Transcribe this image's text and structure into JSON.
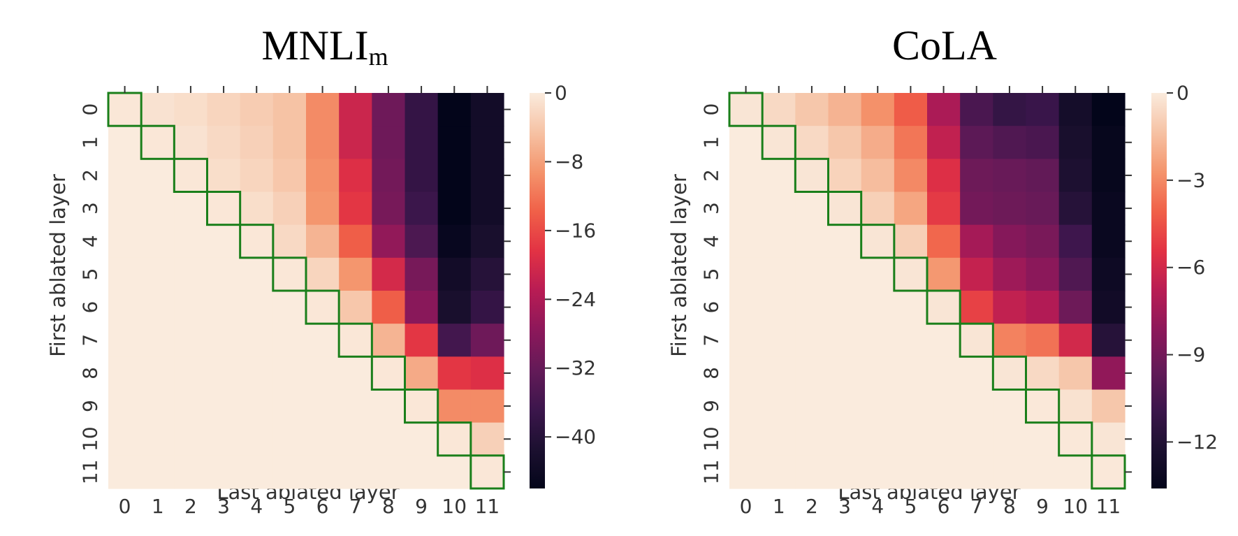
{
  "chart_data": [
    {
      "type": "heatmap",
      "title": "MNLI",
      "title_subscript": "m",
      "xlabel": "Last ablated layer",
      "ylabel": "First ablated layer",
      "x_ticks": [
        "0",
        "1",
        "2",
        "3",
        "4",
        "5",
        "6",
        "7",
        "8",
        "9",
        "10",
        "11"
      ],
      "y_ticks": [
        "0",
        "1",
        "2",
        "3",
        "4",
        "5",
        "6",
        "7",
        "8",
        "9",
        "10",
        "11"
      ],
      "colorbar": {
        "min": -46,
        "max": 0,
        "ticks": [
          0,
          -8,
          -16,
          -24,
          -32,
          -40
        ],
        "tick_labels": [
          "0",
          "−8",
          "−16",
          "−24",
          "−32",
          "−40"
        ],
        "colormap": "rocket"
      },
      "diagonal_highlight_color": "#1a7f1a",
      "values": [
        [
          -0.5,
          -1,
          -1.5,
          -2.5,
          -3.5,
          -4.5,
          -10,
          -21,
          -31,
          -38,
          -46,
          -43
        ],
        [
          0,
          -0.5,
          -1,
          -2,
          -3,
          -4.5,
          -10,
          -21,
          -31,
          -38,
          -46,
          -43
        ],
        [
          0,
          0,
          -0.5,
          -1.5,
          -2.5,
          -4,
          -9.5,
          -19,
          -30.5,
          -38,
          -46,
          -43
        ],
        [
          0,
          0,
          0,
          -0.5,
          -1.5,
          -3,
          -9,
          -18,
          -30,
          -37,
          -46,
          -43
        ],
        [
          0,
          0,
          0,
          0,
          -0.5,
          -2,
          -6,
          -14,
          -27,
          -35,
          -45,
          -42
        ],
        [
          0,
          0,
          0,
          0,
          0,
          -0.5,
          -2.5,
          -9,
          -20,
          -30,
          -43,
          -40
        ],
        [
          0,
          0,
          0,
          0,
          0,
          0,
          -0.5,
          -4,
          -14,
          -28,
          -42,
          -38
        ],
        [
          0,
          0,
          0,
          0,
          0,
          0,
          0,
          -0.5,
          -6,
          -18,
          -36,
          -31
        ],
        [
          0,
          0,
          0,
          0,
          0,
          0,
          0,
          0,
          -0.5,
          -7,
          -18,
          -19
        ],
        [
          0,
          0,
          0,
          0,
          0,
          0,
          0,
          0,
          0,
          -0.5,
          -10,
          -10
        ],
        [
          0,
          0,
          0,
          0,
          0,
          0,
          0,
          0,
          0,
          0,
          -0.5,
          -3
        ],
        [
          0,
          0,
          0,
          0,
          0,
          0,
          0,
          0,
          0,
          0,
          0,
          -0.5
        ]
      ]
    },
    {
      "type": "heatmap",
      "title": "CoLA",
      "xlabel": "Last ablated layer",
      "ylabel": "First ablated layer",
      "x_ticks": [
        "0",
        "1",
        "2",
        "3",
        "4",
        "5",
        "6",
        "7",
        "8",
        "9",
        "10",
        "11"
      ],
      "y_ticks": [
        "0",
        "1",
        "2",
        "3",
        "4",
        "5",
        "6",
        "7",
        "8",
        "9",
        "10",
        "11"
      ],
      "colorbar": {
        "min": -13.6,
        "max": 0,
        "ticks": [
          0,
          -3,
          -6,
          -9,
          -12
        ],
        "tick_labels": [
          "0",
          "−3",
          "−6",
          "−9",
          "−12"
        ],
        "colormap": "rocket"
      },
      "diagonal_highlight_color": "#1a7f1a",
      "values": [
        [
          -0.2,
          -0.6,
          -1.2,
          -1.8,
          -2.8,
          -4.2,
          -7.2,
          -10.4,
          -11.2,
          -11,
          -12.6,
          -13.6
        ],
        [
          0,
          -0.2,
          -0.6,
          -1.2,
          -2,
          -3.5,
          -6.5,
          -9.8,
          -10.2,
          -10.4,
          -12.4,
          -13.4
        ],
        [
          0,
          0,
          -0.2,
          -0.8,
          -1.5,
          -3,
          -5.6,
          -9.2,
          -9.4,
          -9.6,
          -12.2,
          -13.4
        ],
        [
          0,
          0,
          0,
          -0.2,
          -0.9,
          -2.2,
          -5.2,
          -9,
          -9.2,
          -9.4,
          -11.8,
          -13.2
        ],
        [
          0,
          0,
          0,
          0,
          -0.2,
          -0.9,
          -3.9,
          -7.4,
          -8.4,
          -8.8,
          -10.8,
          -13.2
        ],
        [
          0,
          0,
          0,
          0,
          0,
          -0.2,
          -2.6,
          -6.4,
          -7.6,
          -8.2,
          -10.2,
          -13
        ],
        [
          0,
          0,
          0,
          0,
          0,
          0,
          -0.2,
          -5,
          -6.5,
          -7,
          -9.2,
          -12.8
        ],
        [
          0,
          0,
          0,
          0,
          0,
          0,
          0,
          -0.2,
          -3.2,
          -3.6,
          -6,
          -11.8
        ],
        [
          0,
          0,
          0,
          0,
          0,
          0,
          0,
          0,
          -0.2,
          -0.6,
          -1.2,
          -8
        ],
        [
          0,
          0,
          0,
          0,
          0,
          0,
          0,
          0,
          0,
          -0.1,
          -0.3,
          -1.2
        ],
        [
          0,
          0,
          0,
          0,
          0,
          0,
          0,
          0,
          0,
          0,
          -0.1,
          -0.2
        ],
        [
          0,
          0,
          0,
          0,
          0,
          0,
          0,
          0,
          0,
          0,
          0,
          -0.1
        ]
      ]
    }
  ]
}
